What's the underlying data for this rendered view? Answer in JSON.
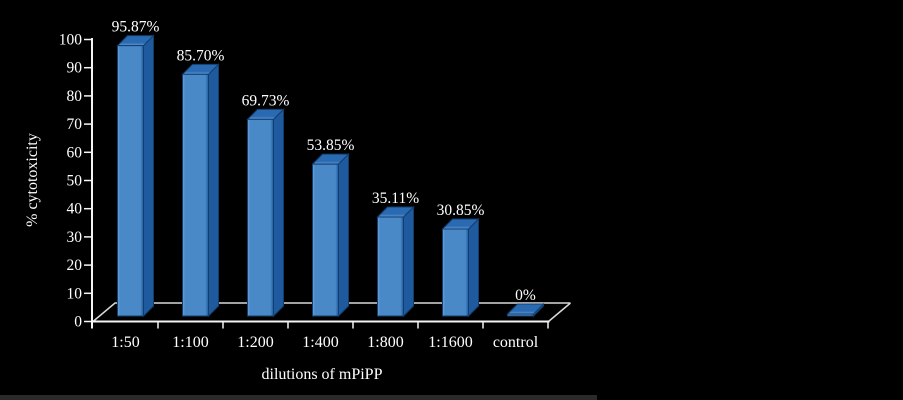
{
  "chart_data": {
    "type": "bar",
    "style": "3d-bar",
    "title": "",
    "categories": [
      "1:50",
      "1:100",
      "1:200",
      "1:400",
      "1:800",
      "1:1600",
      "control"
    ],
    "values": [
      95.87,
      85.7,
      69.73,
      53.85,
      35.11,
      30.85,
      0
    ],
    "value_labels": [
      "95.87%",
      "85.70%",
      "69.73%",
      "53.85%",
      "35.11%",
      "30.85%",
      "0%"
    ],
    "xlabel": "dilutions of mPiPP",
    "ylabel": "% cytotoxicity",
    "ylim": [
      0,
      100
    ],
    "ytick_step": 10,
    "grid": false,
    "legend": false,
    "background": "#000000",
    "colors": {
      "bar_front": "#4a89c8",
      "bar_front_highlight": "#6ba0d8",
      "bar_top_back": "#2a6ab2",
      "bar_top_front": "#6099d5",
      "bar_side": "#1e5a9d",
      "bar_outline": "#123e6e",
      "axis": "#f5f5f5",
      "floor_line": "#d9d9d9",
      "text": "#ffffff"
    }
  }
}
